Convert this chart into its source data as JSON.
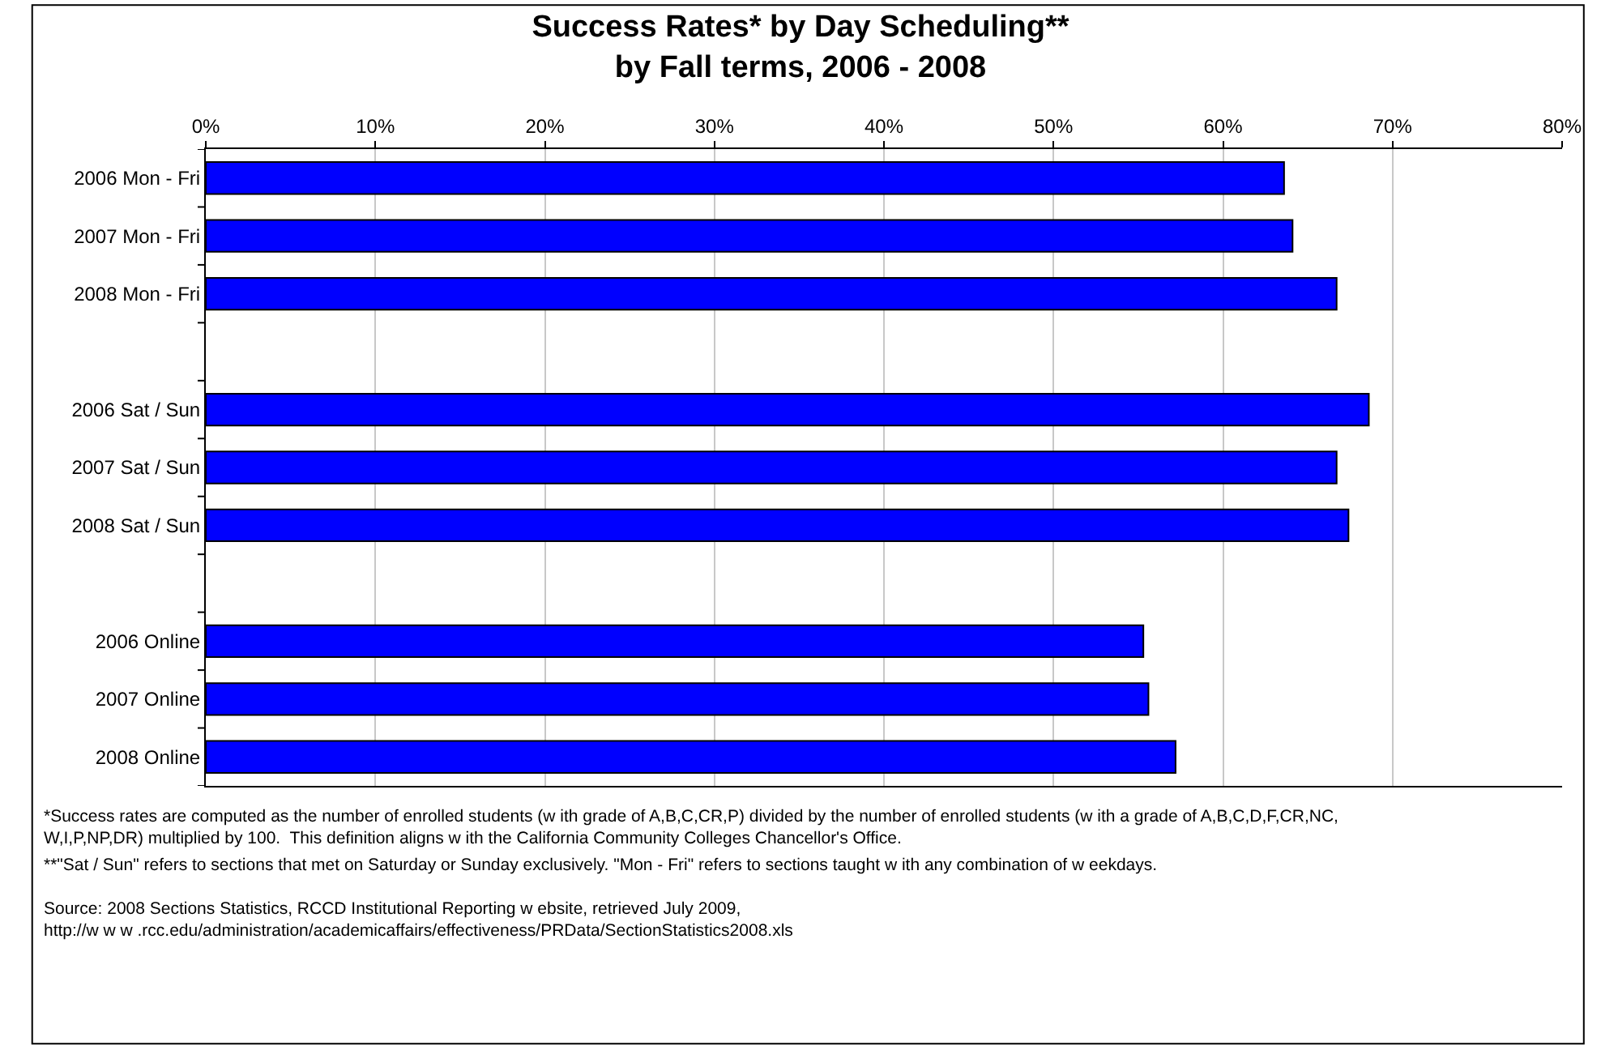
{
  "chart_data": {
    "type": "bar",
    "orientation": "horizontal",
    "title": "Success Rates* by Day Scheduling**\nby Fall terms, 2006 - 2008",
    "categories": [
      "2006 Mon - Fri",
      "2007 Mon - Fri",
      "2008 Mon - Fri",
      null,
      "2006 Sat / Sun",
      "2007 Sat / Sun",
      "2008 Sat / Sun",
      null,
      "2006 Online",
      "2007 Online",
      "2008 Online"
    ],
    "values": [
      63.6,
      64.1,
      66.7,
      null,
      68.6,
      66.7,
      67.4,
      null,
      55.3,
      55.6,
      57.2
    ],
    "color": "#0000ff",
    "xlim": [
      0,
      80
    ],
    "xticks": [
      {
        "value": 0,
        "label": "0%"
      },
      {
        "value": 10,
        "label": "10%"
      },
      {
        "value": 20,
        "label": "20%"
      },
      {
        "value": 30,
        "label": "30%"
      },
      {
        "value": 40,
        "label": "40%"
      },
      {
        "value": 50,
        "label": "50%"
      },
      {
        "value": 60,
        "label": "60%"
      },
      {
        "value": 70,
        "label": "70%"
      },
      {
        "value": 80,
        "label": "80%"
      }
    ],
    "grid": "x",
    "legend": false,
    "annotations": [
      "*Success rates are computed as the number of enrolled students (w ith grade of A,B,C,CR,P) divided by the number of enrolled students (w ith a grade of A,B,C,D,F,CR,NC,\nW,I,P,NP,DR) multiplied by 100.  This definition aligns w ith the California Community Colleges Chancellor's Office.",
      "**\"Sat / Sun\" refers to sections that met on Saturday or Sunday exclusively. \"Mon - Fri\" refers to sections taught w ith any combination of w eekdays.",
      "Source: 2008 Sections Statistics, RCCD Institutional Reporting w ebsite, retrieved July 2009,\nhttp://w w w .rcc.edu/administration/academicaffairs/effectiveness/PRData/SectionStatistics2008.xls"
    ]
  }
}
